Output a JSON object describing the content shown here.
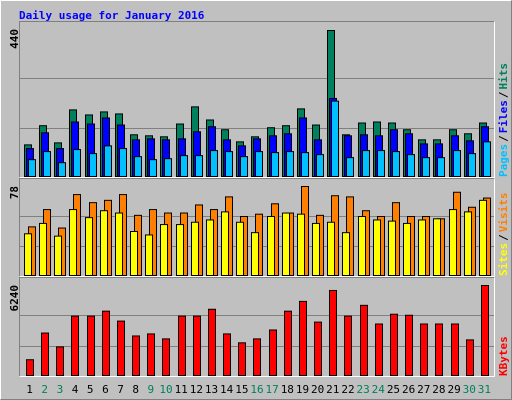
{
  "chart_data": [
    {
      "type": "bar",
      "title": "Daily usage for January 2016",
      "ylim": [
        0,
        440
      ],
      "yticks": [
        440
      ],
      "legend_separator": "/",
      "series": [
        {
          "name": "Hits",
          "color": "#00805c",
          "values": [
            97,
            154,
            103,
            201,
            186,
            195,
            189,
            127,
            124,
            121,
            159,
            210,
            171,
            142,
            106,
            121,
            148,
            154,
            204,
            156,
            437,
            127,
            162,
            165,
            162,
            142,
            112,
            112,
            142,
            130,
            162
          ]
        },
        {
          "name": "Files",
          "color": "#0000ff",
          "values": [
            86,
            133,
            86,
            165,
            159,
            177,
            156,
            112,
            115,
            112,
            115,
            136,
            151,
            112,
            94,
            115,
            124,
            130,
            177,
            112,
            235,
            124,
            127,
            124,
            142,
            130,
            100,
            100,
            124,
            109,
            151
          ]
        },
        {
          "name": "Pages",
          "color": "#00c0ff",
          "values": [
            53,
            77,
            44,
            83,
            71,
            94,
            86,
            62,
            53,
            56,
            65,
            65,
            80,
            77,
            62,
            77,
            74,
            77,
            74,
            68,
            227,
            59,
            80,
            80,
            77,
            68,
            59,
            59,
            80,
            71,
            106
          ]
        }
      ]
    },
    {
      "type": "bar",
      "ylim": [
        0,
        78
      ],
      "yticks": [
        78
      ],
      "legend_separator": "/",
      "series": [
        {
          "name": "Visits",
          "color": "#ff8000",
          "values": [
            43,
            58,
            42,
            71,
            64,
            66,
            71,
            53,
            58,
            55,
            55,
            62,
            58,
            69,
            52,
            54,
            63,
            55,
            78,
            53,
            70,
            69,
            57,
            52,
            64,
            52,
            52,
            50,
            73,
            60,
            68
          ]
        },
        {
          "name": "Sites",
          "color": "#ffff00",
          "values": [
            37,
            46,
            35,
            58,
            51,
            57,
            55,
            39,
            36,
            45,
            45,
            47,
            49,
            56,
            47,
            38,
            52,
            55,
            54,
            46,
            47,
            38,
            52,
            49,
            48,
            46,
            49,
            50,
            58,
            56,
            66
          ]
        }
      ]
    },
    {
      "type": "bar",
      "ylim": [
        0,
        6240
      ],
      "yticks": [
        6240
      ],
      "categories": [
        "1",
        "2",
        "3",
        "4",
        "5",
        "6",
        "7",
        "8",
        "9",
        "10",
        "11",
        "12",
        "13",
        "14",
        "15",
        "16",
        "17",
        "18",
        "19",
        "20",
        "21",
        "22",
        "23",
        "24",
        "25",
        "26",
        "27",
        "28",
        "29",
        "30",
        "31"
      ],
      "category_colors": [
        "#000000",
        "#00805c",
        "#00805c",
        "#000000",
        "#000000",
        "#000000",
        "#000000",
        "#000000",
        "#00805c",
        "#00805c",
        "#000000",
        "#000000",
        "#000000",
        "#000000",
        "#000000",
        "#00805c",
        "#00805c",
        "#000000",
        "#000000",
        "#000000",
        "#000000",
        "#000000",
        "#00805c",
        "#00805c",
        "#000000",
        "#000000",
        "#000000",
        "#000000",
        "#000000",
        "#00805c",
        "#00805c"
      ],
      "series": [
        {
          "name": "KBytes",
          "color": "#ff0000",
          "values": [
            1150,
            2980,
            2030,
            4140,
            4140,
            4480,
            3800,
            2780,
            2920,
            2580,
            4140,
            4140,
            4610,
            2920,
            2310,
            2580,
            3190,
            4480,
            5150,
            3730,
            5900,
            4140,
            4880,
            3600,
            4270,
            4200,
            3600,
            3600,
            3600,
            2510,
            6240
          ]
        }
      ]
    }
  ]
}
